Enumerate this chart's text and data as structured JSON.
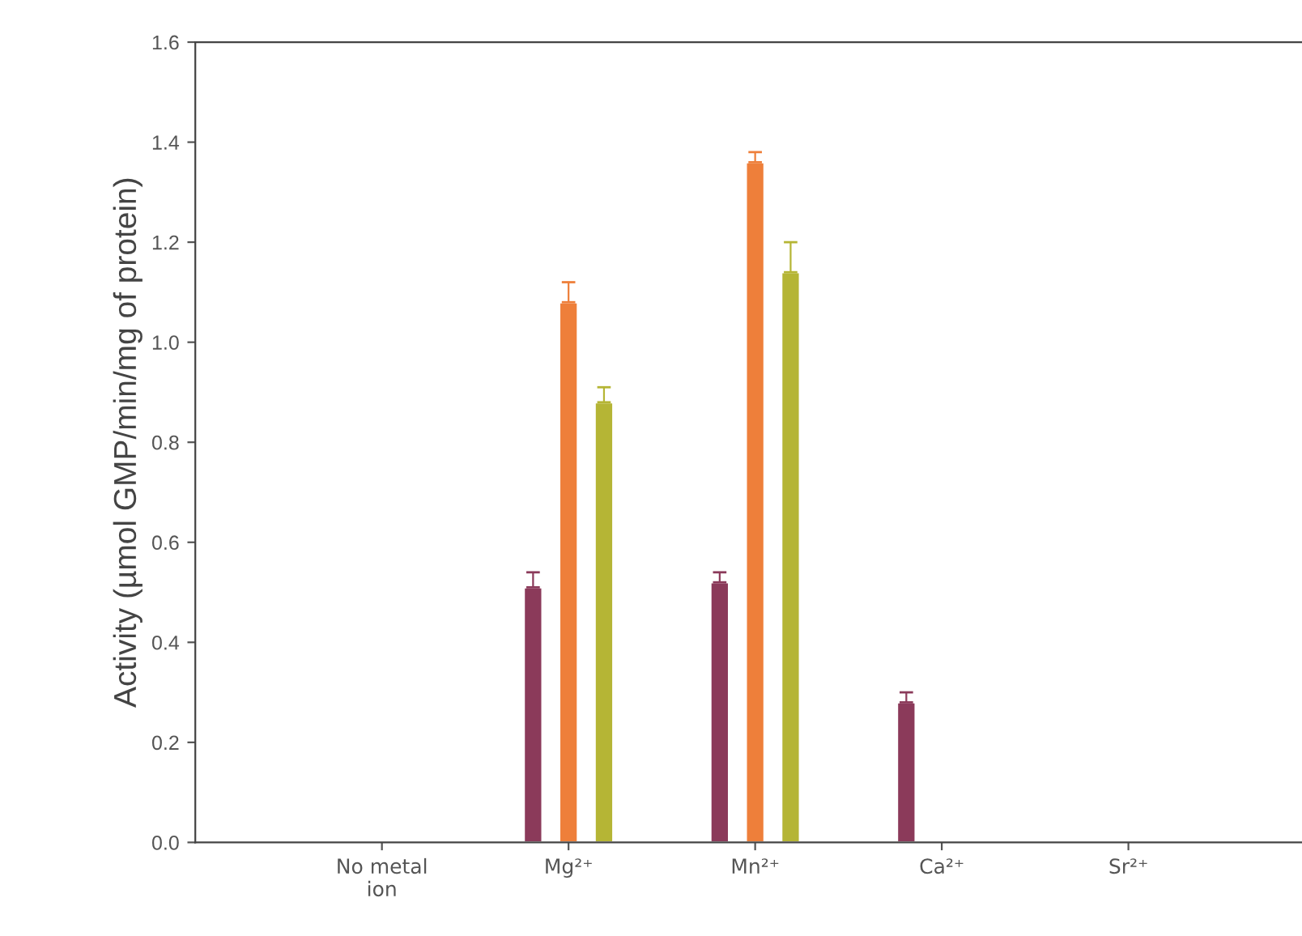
{
  "chart_data": {
    "type": "bar",
    "ylabel": "Activity (µmol GMP/min/mg of protein)",
    "categories": [
      "No metal\nion",
      "Mg²⁺",
      "Mn²⁺",
      "Ca²⁺",
      "Sr²⁺"
    ],
    "series": [
      {
        "color": "#8b3a5a",
        "values": [
          null,
          0.51,
          0.52,
          0.28,
          null
        ],
        "errors": [
          null,
          0.03,
          0.02,
          0.02,
          null
        ]
      },
      {
        "color": "#ee7f3a",
        "values": [
          null,
          1.08,
          1.36,
          null,
          null
        ],
        "errors": [
          null,
          0.04,
          0.02,
          null,
          null
        ]
      },
      {
        "color": "#b5b535",
        "values": [
          null,
          0.88,
          1.14,
          null,
          null
        ],
        "errors": [
          null,
          0.03,
          0.06,
          null,
          null
        ]
      }
    ],
    "ylim": [
      0,
      1.6
    ],
    "yticks": [
      {
        "value": 0,
        "label": "0.0"
      },
      0.2,
      0.4,
      0.6,
      0.8,
      {
        "value": 1,
        "label": "1.0"
      },
      1.2,
      1.4,
      1.6
    ],
    "grid": false
  }
}
